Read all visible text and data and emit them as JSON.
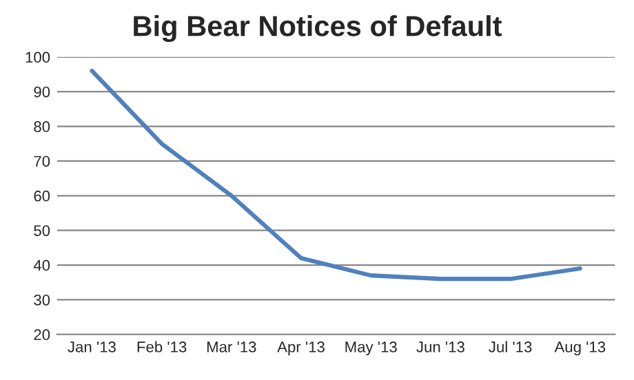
{
  "chart_data": {
    "type": "line",
    "title": "Big Bear Notices of Default",
    "categories": [
      "Jan '13",
      "Feb '13",
      "Mar '13",
      "Apr '13",
      "May '13",
      "Jun '13",
      "Jul '13",
      "Aug '13"
    ],
    "series": [
      {
        "color": "#4f81bd",
        "values": [
          96,
          75,
          60,
          42,
          37,
          36,
          36,
          39
        ]
      }
    ],
    "ylim": [
      20,
      100
    ],
    "yticks": [
      20,
      30,
      40,
      50,
      60,
      70,
      80,
      90,
      100
    ],
    "grid": "y",
    "marker": "none",
    "line_style": "solid"
  }
}
